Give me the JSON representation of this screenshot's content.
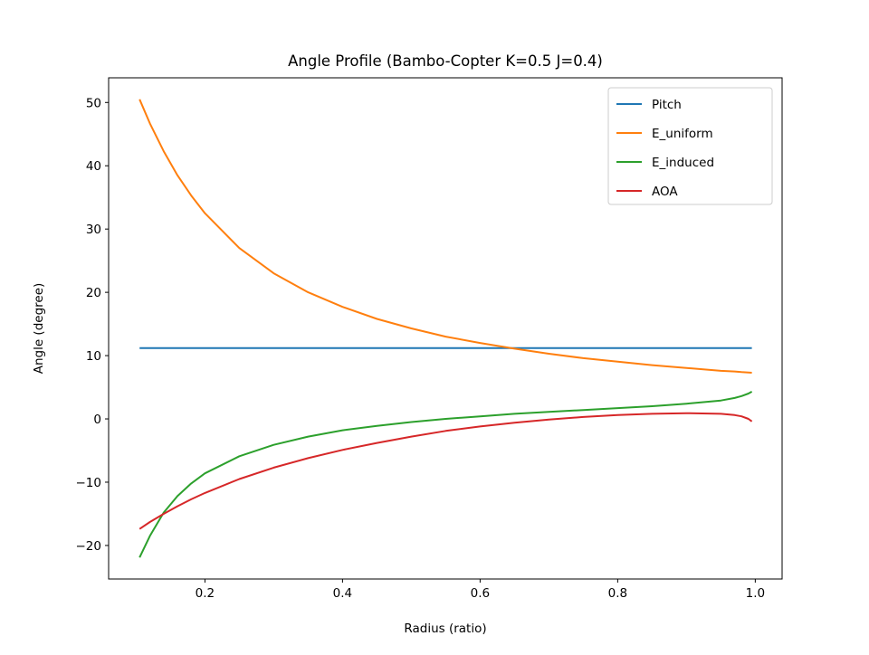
{
  "chart_data": {
    "type": "line",
    "title": "Angle Profile (Bambo-Copter K=0.5 J=0.4)",
    "xlabel": "Radius (ratio)",
    "ylabel": "Angle (degree)",
    "xlim": [
      0.06,
      1.039
    ],
    "ylim": [
      -25.3,
      53.9
    ],
    "xticks": [
      0.2,
      0.4,
      0.6,
      0.8,
      1.0
    ],
    "xtick_labels": [
      "0.2",
      "0.4",
      "0.6",
      "0.8",
      "1.0"
    ],
    "yticks": [
      -20,
      -10,
      0,
      10,
      20,
      30,
      40,
      50
    ],
    "ytick_labels": [
      "−20",
      "−10",
      "0",
      "10",
      "20",
      "30",
      "40",
      "50"
    ],
    "grid": false,
    "legend_position": "top-right",
    "x": [
      0.105,
      0.12,
      0.14,
      0.16,
      0.18,
      0.2,
      0.25,
      0.3,
      0.35,
      0.4,
      0.45,
      0.5,
      0.55,
      0.6,
      0.65,
      0.7,
      0.75,
      0.8,
      0.85,
      0.9,
      0.95,
      0.97,
      0.98,
      0.99,
      0.995
    ],
    "series": [
      {
        "name": "Pitch",
        "color": "#1f77b4",
        "values": [
          11.2,
          11.2,
          11.2,
          11.2,
          11.2,
          11.2,
          11.2,
          11.2,
          11.2,
          11.2,
          11.2,
          11.2,
          11.2,
          11.2,
          11.2,
          11.2,
          11.2,
          11.2,
          11.2,
          11.2,
          11.2,
          11.2,
          11.2,
          11.2,
          11.2
        ]
      },
      {
        "name": "E_uniform",
        "color": "#ff7f0e",
        "values": [
          50.5,
          46.7,
          42.3,
          38.5,
          35.3,
          32.5,
          27.0,
          23.0,
          20.0,
          17.7,
          15.8,
          14.3,
          13.0,
          12.0,
          11.1,
          10.3,
          9.6,
          9.05,
          8.5,
          8.05,
          7.6,
          7.5,
          7.4,
          7.33,
          7.3
        ]
      },
      {
        "name": "E_induced",
        "color": "#2ca02c",
        "values": [
          -21.9,
          -18.5,
          -14.8,
          -12.2,
          -10.2,
          -8.6,
          -5.9,
          -4.1,
          -2.8,
          -1.8,
          -1.1,
          -0.5,
          0.0,
          0.4,
          0.8,
          1.1,
          1.4,
          1.7,
          2.0,
          2.4,
          2.9,
          3.3,
          3.6,
          4.0,
          4.3
        ]
      },
      {
        "name": "AOA",
        "color": "#d62728",
        "values": [
          -17.4,
          -16.3,
          -15.0,
          -13.8,
          -12.7,
          -11.7,
          -9.5,
          -7.7,
          -6.2,
          -4.9,
          -3.8,
          -2.8,
          -1.9,
          -1.2,
          -0.6,
          -0.1,
          0.3,
          0.6,
          0.8,
          0.9,
          0.8,
          0.6,
          0.4,
          0.0,
          -0.4
        ]
      }
    ]
  }
}
